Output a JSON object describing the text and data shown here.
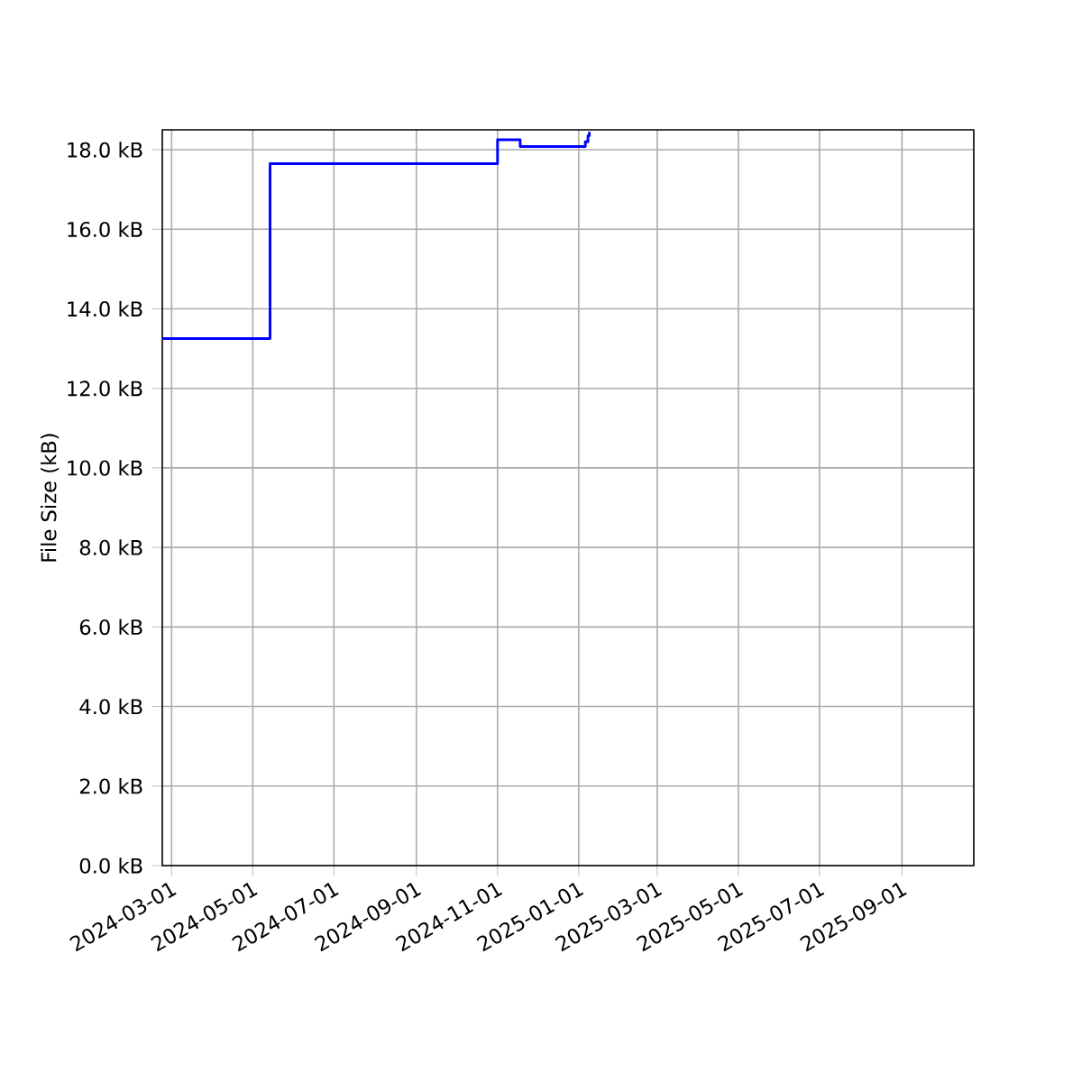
{
  "chart_data": {
    "type": "step",
    "ylabel": "File Size (kB)",
    "x": [
      "2024-02-23",
      "2024-05-14",
      "2024-11-01",
      "2024-11-18",
      "2025-01-06",
      "2025-01-08",
      "2025-01-09"
    ],
    "series": [
      {
        "color": "#0000ff",
        "values": [
          13.25,
          17.65,
          18.25,
          18.08,
          18.2,
          18.35,
          18.45
        ]
      }
    ],
    "xlim": [
      "2024-02-23",
      "2025-10-25"
    ],
    "xticks": [
      "2024-03-01",
      "2024-05-01",
      "2024-07-01",
      "2024-09-01",
      "2024-11-01",
      "2025-01-01",
      "2025-03-01",
      "2025-05-01",
      "2025-07-01",
      "2025-09-01"
    ],
    "ylim": [
      0,
      18.5
    ],
    "yticks": [
      {
        "value": 0,
        "label": "0.0 kB"
      },
      {
        "value": 2,
        "label": "2.0 kB"
      },
      {
        "value": 4,
        "label": "4.0 kB"
      },
      {
        "value": 6,
        "label": "6.0 kB"
      },
      {
        "value": 8,
        "label": "8.0 kB"
      },
      {
        "value": 10,
        "label": "10.0 kB"
      },
      {
        "value": 12,
        "label": "12.0 kB"
      },
      {
        "value": 14,
        "label": "14.0 kB"
      },
      {
        "value": 16,
        "label": "16.0 kB"
      },
      {
        "value": 18,
        "label": "18.0 kB"
      }
    ],
    "grid": true
  }
}
